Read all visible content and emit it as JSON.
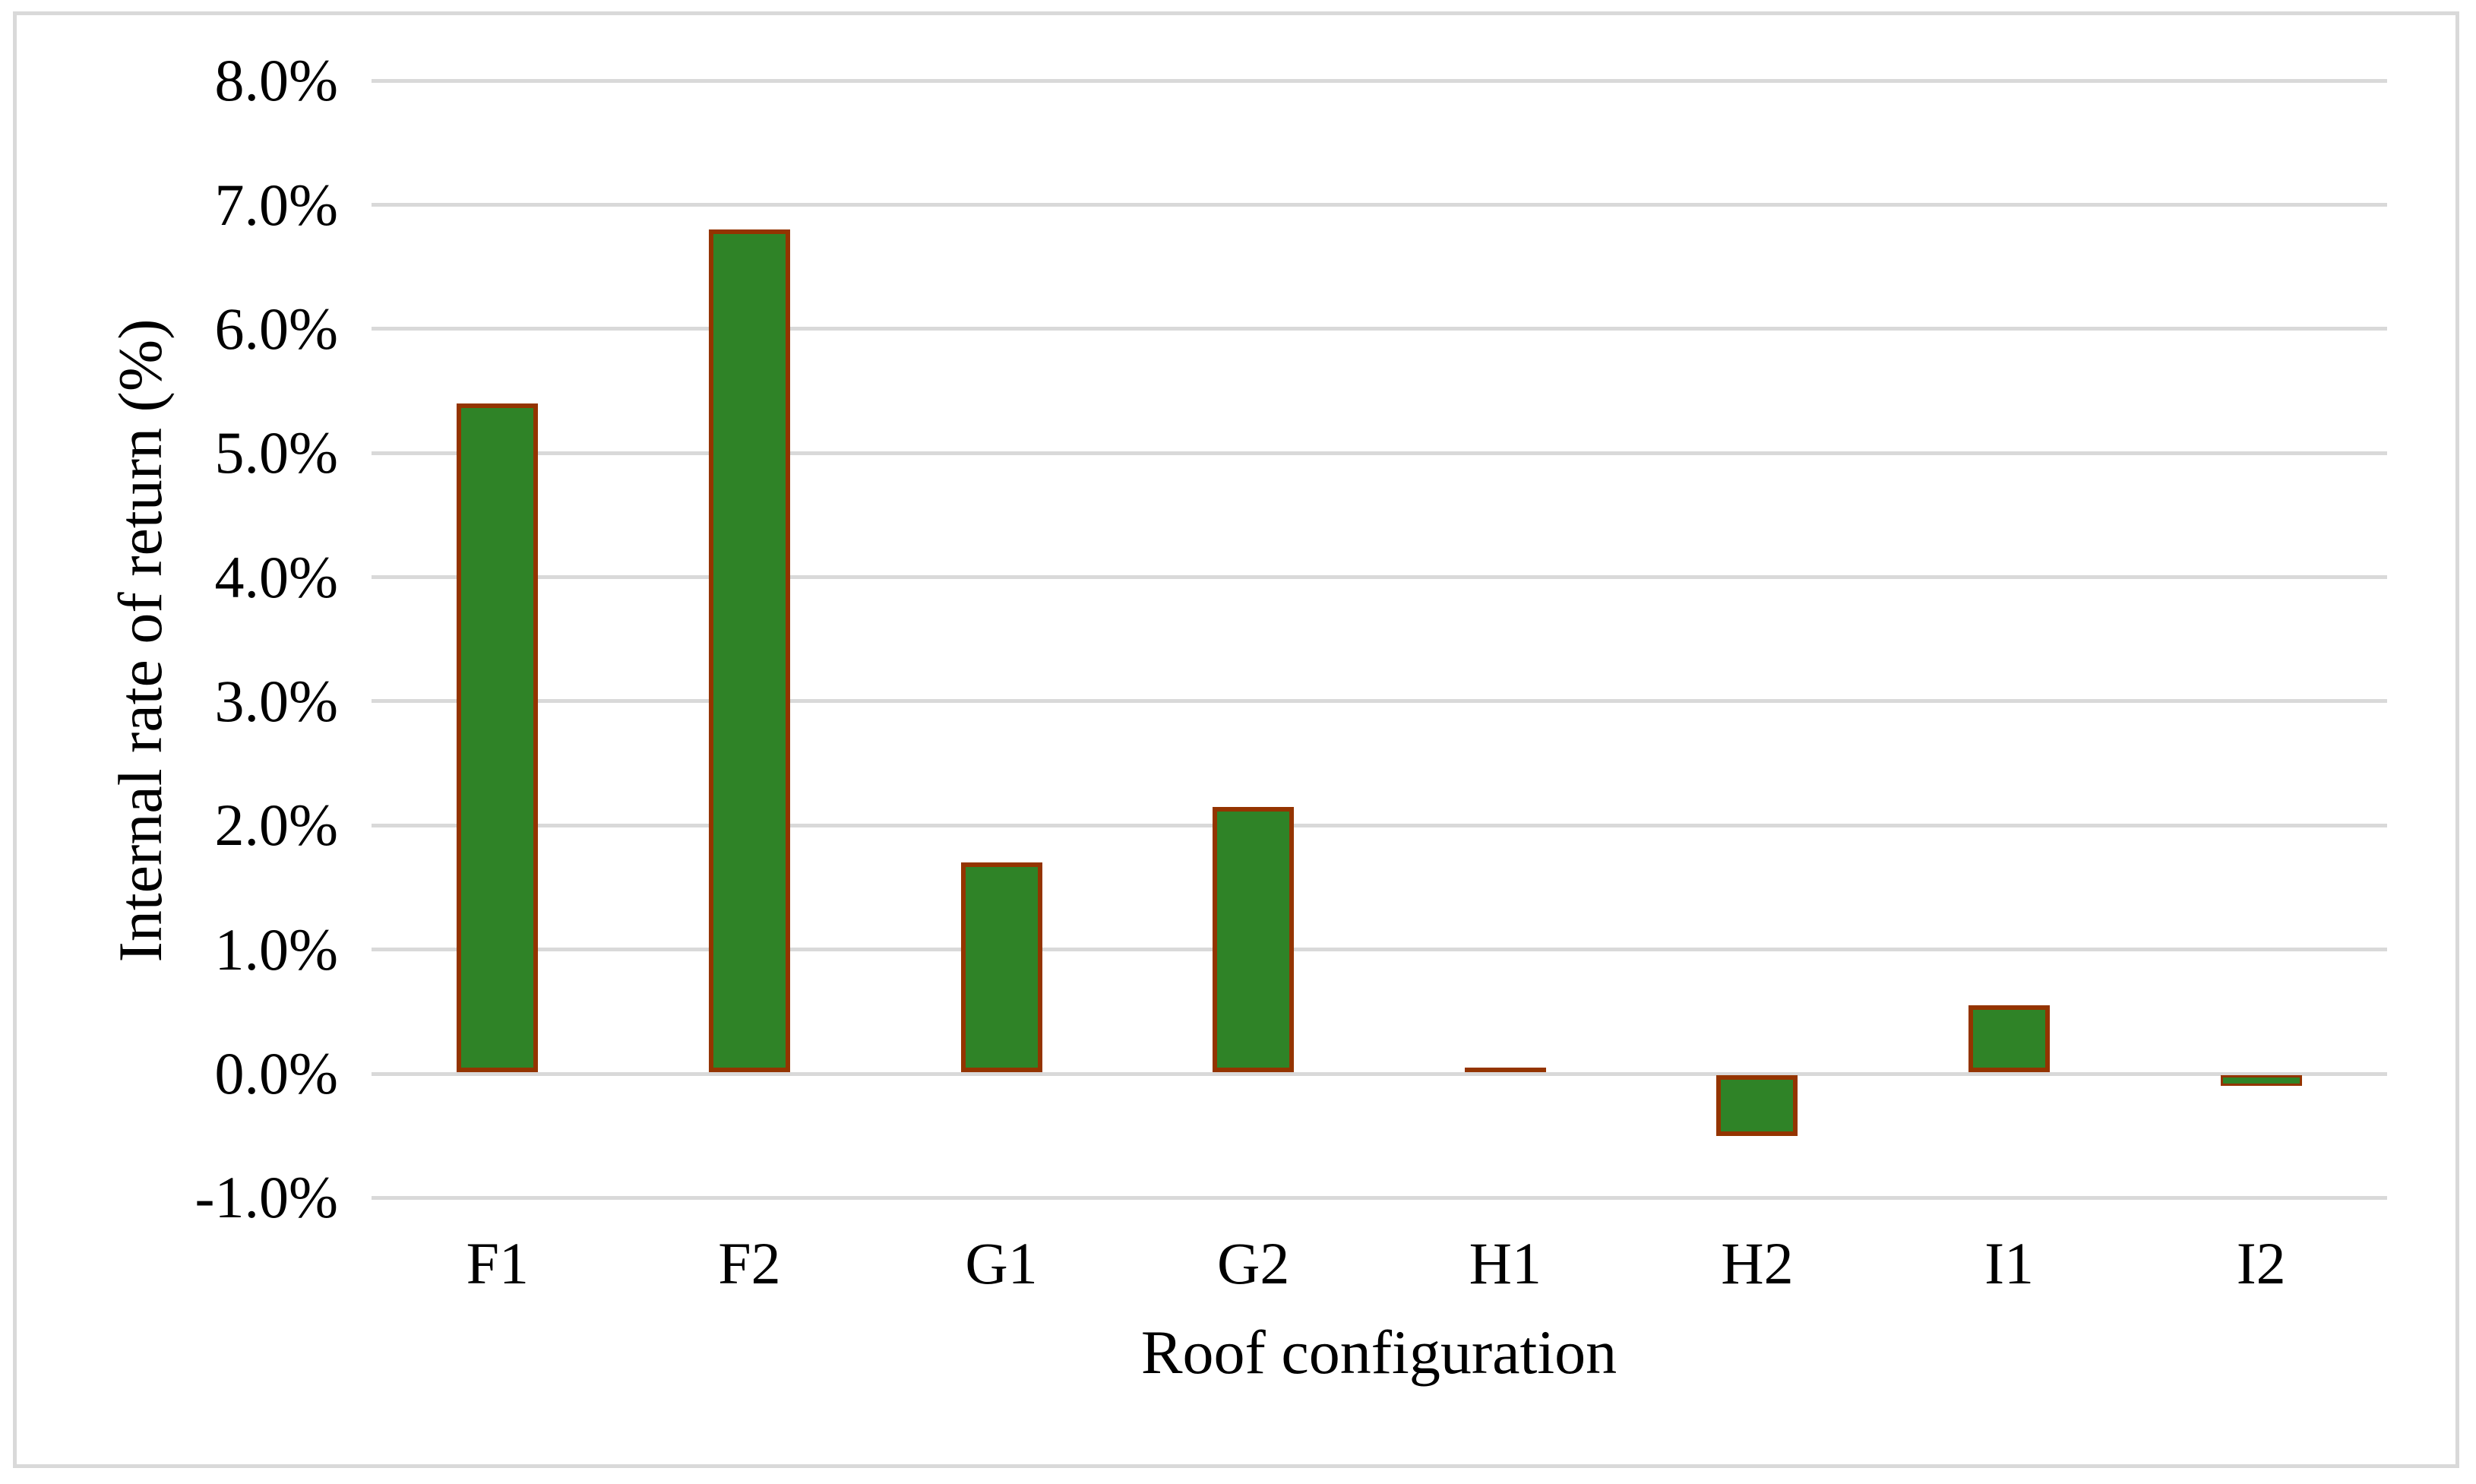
{
  "chart_data": {
    "type": "bar",
    "title": "",
    "categories": [
      "F1",
      "F2",
      "G1",
      "G2",
      "H1",
      "H2",
      "I1",
      "I2"
    ],
    "values": [
      5.4,
      6.8,
      1.7,
      2.15,
      0.05,
      -0.5,
      0.55,
      -0.1
    ],
    "series_unit": "percent",
    "xlabel": "Roof configuration",
    "ylabel": "Internal rate of return (%)",
    "ylim": [
      -1,
      8
    ],
    "ytick_values": [
      8,
      7,
      6,
      5,
      4,
      3,
      2,
      1,
      0,
      -1
    ],
    "ytick_labels": [
      "8.0%",
      "7.0%",
      "6.0%",
      "5.0%",
      "4.0%",
      "3.0%",
      "2.0%",
      "1.0%",
      "0.0%",
      "-1.0%"
    ],
    "grid": true,
    "legend": false,
    "colors": {
      "bar_fill": "#2F8327",
      "bar_border": "#943400",
      "gridline": "#D9D9D9",
      "frame_border": "#D9D9D9",
      "text": "#000000",
      "background": "#FFFFFF"
    }
  }
}
